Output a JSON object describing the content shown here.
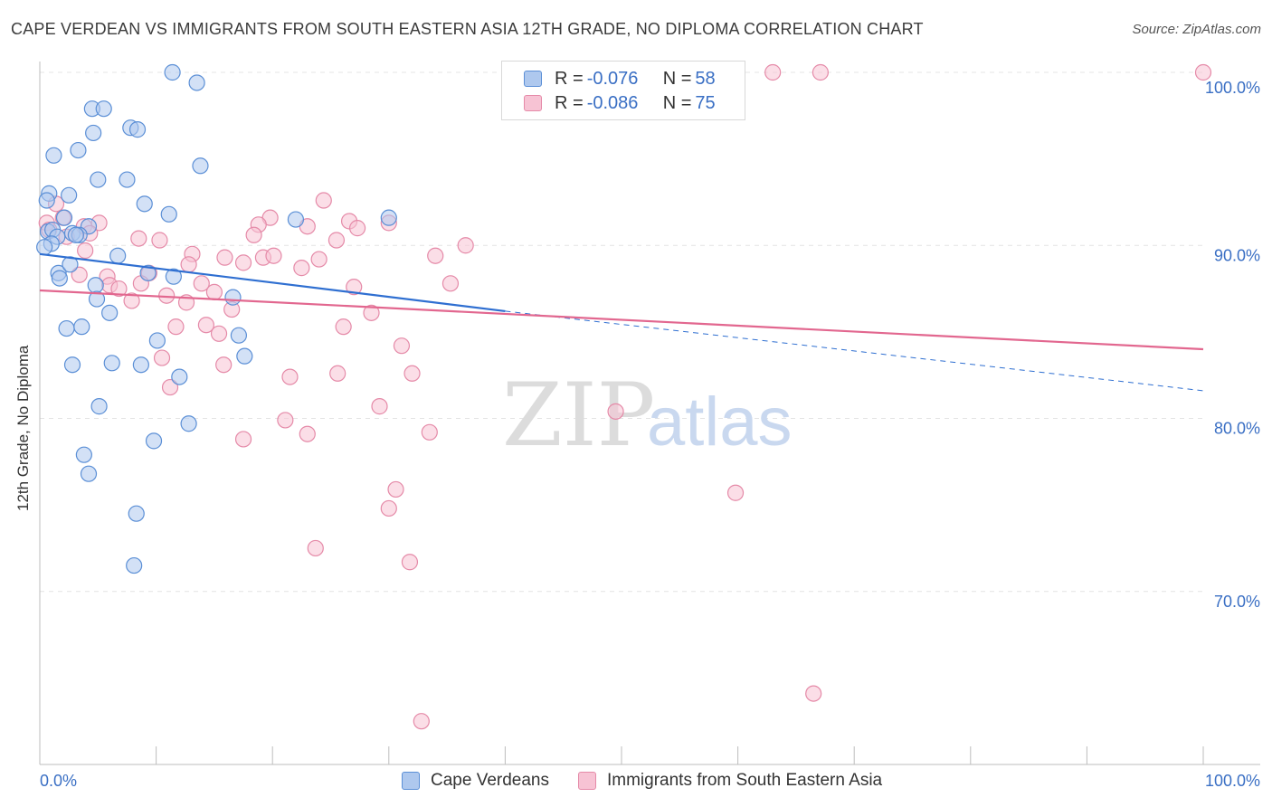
{
  "title": "CAPE VERDEAN VS IMMIGRANTS FROM SOUTH EASTERN ASIA 12TH GRADE, NO DIPLOMA CORRELATION CHART",
  "source": "Source: ZipAtlas.com",
  "watermark": {
    "zip": "ZIP",
    "atlas": "atlas"
  },
  "legend": {
    "rows": [
      {
        "r_label": "R = ",
        "r_value": "-0.076",
        "n_label": "N = ",
        "n_value": "58"
      },
      {
        "r_label": "R = ",
        "r_value": "-0.086",
        "n_label": "N = ",
        "n_value": "75"
      }
    ]
  },
  "bottom_legend": {
    "series1": "Cape Verdeans",
    "series2": "Immigrants from South Eastern Asia"
  },
  "chart_data": {
    "type": "scatter",
    "xlabel": "",
    "ylabel": "12th Grade, No Diploma",
    "xlim": [
      0,
      100
    ],
    "ylim": [
      60,
      100
    ],
    "x_tick_labels": [
      "0.0%",
      "100.0%"
    ],
    "y_ticks": [
      70,
      80,
      90,
      100
    ],
    "y_tick_labels": [
      "70.0%",
      "80.0%",
      "90.0%",
      "100.0%"
    ],
    "grid": true,
    "legend_position": "top-center",
    "colors": {
      "series1_fill": "#aec8ee",
      "series1_stroke": "#5b8fd6",
      "series1_line": "#2f6fd1",
      "series2_fill": "#f7c3d4",
      "series2_stroke": "#e58aa8",
      "series2_line": "#e2678f",
      "tick_label": "#3a6fc4"
    },
    "series": [
      {
        "name": "Cape Verdeans",
        "r": -0.076,
        "n": 58,
        "trend": {
          "x": [
            0,
            40,
            100
          ],
          "y": [
            89.5,
            86.2,
            81.6
          ],
          "solid_until": 40
        },
        "points": [
          [
            11.4,
            100.0
          ],
          [
            13.5,
            99.4
          ],
          [
            4.5,
            97.9
          ],
          [
            5.5,
            97.9
          ],
          [
            7.8,
            96.8
          ],
          [
            8.4,
            96.7
          ],
          [
            4.6,
            96.5
          ],
          [
            1.2,
            95.2
          ],
          [
            3.3,
            95.5
          ],
          [
            13.8,
            94.6
          ],
          [
            5.0,
            93.8
          ],
          [
            7.5,
            93.8
          ],
          [
            0.8,
            93.0
          ],
          [
            2.5,
            92.9
          ],
          [
            0.6,
            92.6
          ],
          [
            9.0,
            92.4
          ],
          [
            11.1,
            91.8
          ],
          [
            2.1,
            91.6
          ],
          [
            4.2,
            91.1
          ],
          [
            22.0,
            91.5
          ],
          [
            30.0,
            91.6
          ],
          [
            0.7,
            90.8
          ],
          [
            1.1,
            90.9
          ],
          [
            1.5,
            90.5
          ],
          [
            2.8,
            90.7
          ],
          [
            3.4,
            90.6
          ],
          [
            3.1,
            90.6
          ],
          [
            1.0,
            90.1
          ],
          [
            0.4,
            89.9
          ],
          [
            6.7,
            89.4
          ],
          [
            1.6,
            88.4
          ],
          [
            2.6,
            88.9
          ],
          [
            1.7,
            88.1
          ],
          [
            9.3,
            88.4
          ],
          [
            11.5,
            88.2
          ],
          [
            4.8,
            87.7
          ],
          [
            16.6,
            87.0
          ],
          [
            4.9,
            86.9
          ],
          [
            6.0,
            86.1
          ],
          [
            2.3,
            85.2
          ],
          [
            3.6,
            85.3
          ],
          [
            10.1,
            84.5
          ],
          [
            17.1,
            84.8
          ],
          [
            17.6,
            83.6
          ],
          [
            2.8,
            83.1
          ],
          [
            6.2,
            83.2
          ],
          [
            8.7,
            83.1
          ],
          [
            12.0,
            82.4
          ],
          [
            5.1,
            80.7
          ],
          [
            12.8,
            79.7
          ],
          [
            9.8,
            78.7
          ],
          [
            3.8,
            77.9
          ],
          [
            4.2,
            76.8
          ],
          [
            8.3,
            74.5
          ],
          [
            8.1,
            71.5
          ]
        ]
      },
      {
        "name": "Immigrants from South Eastern Asia",
        "r": -0.086,
        "n": 75,
        "trend": {
          "x": [
            0,
            100
          ],
          "y": [
            87.4,
            84.0
          ]
        },
        "points": [
          [
            63.0,
            100.0
          ],
          [
            67.1,
            100.0
          ],
          [
            100.0,
            100.0
          ],
          [
            24.4,
            92.6
          ],
          [
            1.4,
            92.4
          ],
          [
            2.0,
            91.6
          ],
          [
            0.6,
            91.3
          ],
          [
            19.8,
            91.6
          ],
          [
            26.6,
            91.4
          ],
          [
            5.1,
            91.3
          ],
          [
            0.8,
            90.9
          ],
          [
            3.8,
            91.1
          ],
          [
            18.8,
            91.2
          ],
          [
            23.0,
            91.1
          ],
          [
            27.3,
            91.0
          ],
          [
            30.0,
            91.3
          ],
          [
            2.3,
            90.5
          ],
          [
            4.3,
            90.7
          ],
          [
            18.4,
            90.6
          ],
          [
            8.5,
            90.4
          ],
          [
            10.3,
            90.3
          ],
          [
            25.5,
            90.3
          ],
          [
            36.6,
            90.0
          ],
          [
            3.9,
            89.7
          ],
          [
            13.1,
            89.5
          ],
          [
            34.0,
            89.4
          ],
          [
            15.9,
            89.3
          ],
          [
            19.2,
            89.3
          ],
          [
            20.1,
            89.4
          ],
          [
            24.0,
            89.2
          ],
          [
            12.8,
            88.9
          ],
          [
            17.5,
            89.0
          ],
          [
            22.5,
            88.7
          ],
          [
            3.4,
            88.3
          ],
          [
            5.8,
            88.2
          ],
          [
            9.4,
            88.4
          ],
          [
            6.0,
            87.7
          ],
          [
            6.8,
            87.5
          ],
          [
            13.9,
            87.8
          ],
          [
            8.7,
            87.8
          ],
          [
            27.0,
            87.6
          ],
          [
            35.3,
            87.8
          ],
          [
            10.9,
            87.1
          ],
          [
            15.0,
            87.3
          ],
          [
            7.9,
            86.8
          ],
          [
            12.6,
            86.7
          ],
          [
            16.5,
            86.3
          ],
          [
            28.5,
            86.1
          ],
          [
            11.7,
            85.3
          ],
          [
            14.3,
            85.4
          ],
          [
            26.1,
            85.3
          ],
          [
            15.4,
            84.9
          ],
          [
            31.1,
            84.2
          ],
          [
            10.5,
            83.5
          ],
          [
            15.8,
            83.1
          ],
          [
            21.5,
            82.4
          ],
          [
            25.6,
            82.6
          ],
          [
            32.0,
            82.6
          ],
          [
            11.2,
            81.8
          ],
          [
            29.2,
            80.7
          ],
          [
            49.5,
            80.4
          ],
          [
            21.1,
            79.9
          ],
          [
            23.0,
            79.1
          ],
          [
            33.5,
            79.2
          ],
          [
            17.5,
            78.8
          ],
          [
            30.6,
            75.9
          ],
          [
            59.8,
            75.7
          ],
          [
            30.0,
            74.8
          ],
          [
            23.7,
            72.5
          ],
          [
            31.8,
            71.7
          ],
          [
            66.5,
            64.1
          ],
          [
            32.8,
            62.5
          ]
        ]
      }
    ]
  }
}
